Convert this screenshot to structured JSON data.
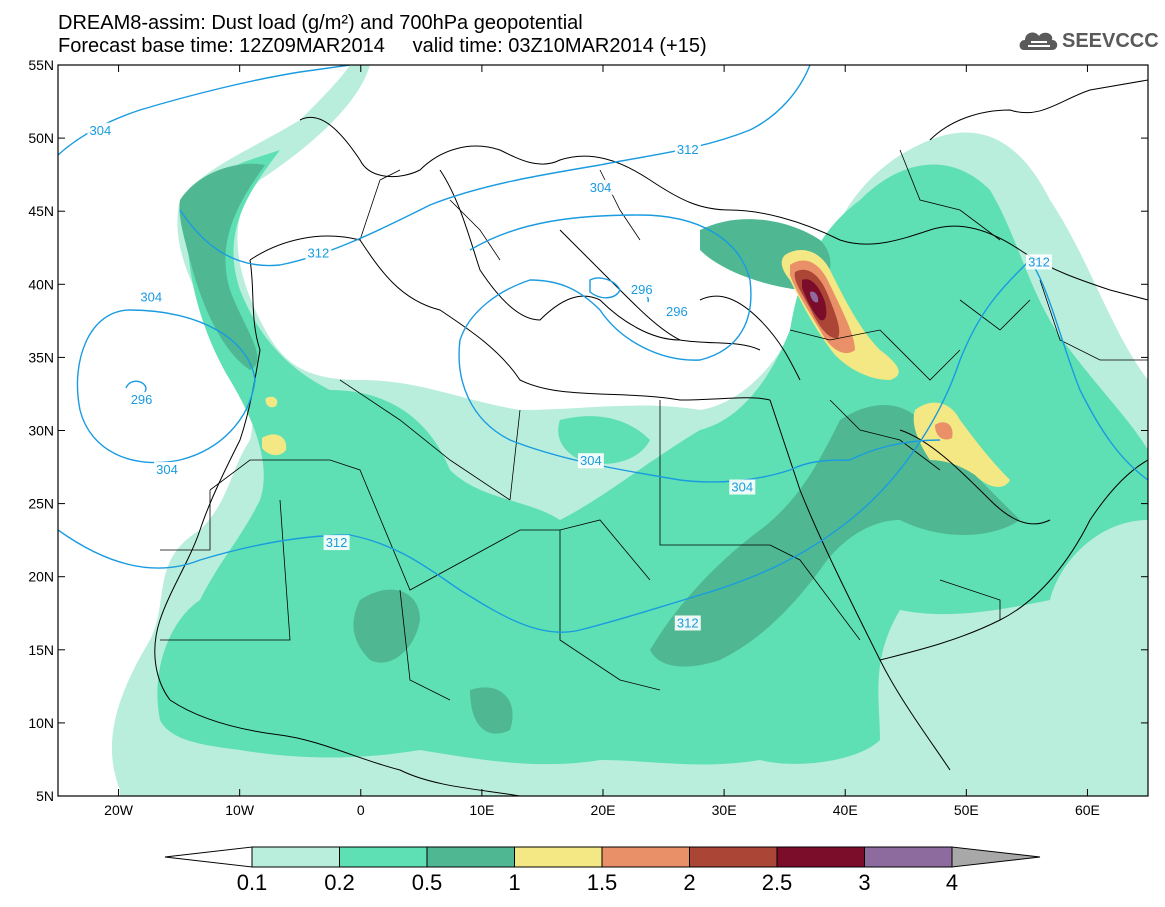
{
  "title_line1": "DREAM8-assim: Dust load (g/m²) and 700hPa geopotential",
  "title_line2": "Forecast base time: 12Z09MAR2014     valid time: 03Z10MAR2014 (+15)",
  "logo_text": "SEEVCCC",
  "logo_icon": "cloud-icon",
  "map": {
    "lat_labels": [
      "55N",
      "50N",
      "45N",
      "40N",
      "35N",
      "30N",
      "25N",
      "20N",
      "15N",
      "10N",
      "5N"
    ],
    "lat_values": [
      55,
      50,
      45,
      40,
      35,
      30,
      25,
      20,
      15,
      10,
      5
    ],
    "lon_labels": [
      "20W",
      "10W",
      "0",
      "10E",
      "20E",
      "30E",
      "40E",
      "50E",
      "60E"
    ],
    "lon_values": [
      -20,
      -10,
      0,
      10,
      20,
      30,
      40,
      50,
      60
    ],
    "lon_range": [
      -25,
      65
    ],
    "lat_range": [
      5,
      55
    ],
    "contour_color": "#1a9be0",
    "contour_labels": [
      {
        "text": "304",
        "lon": -21.5,
        "lat": 50.5
      },
      {
        "text": "304",
        "lon": -17.3,
        "lat": 39.1
      },
      {
        "text": "296",
        "lon": -18.1,
        "lat": 32.1
      },
      {
        "text": "304",
        "lon": -16.0,
        "lat": 27.3
      },
      {
        "text": "312",
        "lon": -3.5,
        "lat": 42.1
      },
      {
        "text": "312",
        "lon": -2.0,
        "lat": 22.3
      },
      {
        "text": "312",
        "lon": 27.0,
        "lat": 49.2
      },
      {
        "text": "304",
        "lon": 19.8,
        "lat": 46.6
      },
      {
        "text": "296",
        "lon": 23.2,
        "lat": 39.6
      },
      {
        "text": "296",
        "lon": 26.1,
        "lat": 38.1
      },
      {
        "text": "304",
        "lon": 19.0,
        "lat": 27.9
      },
      {
        "text": "304",
        "lon": 31.5,
        "lat": 26.1
      },
      {
        "text": "312",
        "lon": 27.0,
        "lat": 16.8
      },
      {
        "text": "312",
        "lon": 56.0,
        "lat": 41.5
      }
    ]
  },
  "colorbar": {
    "labels": [
      "0.1",
      "0.2",
      "0.5",
      "1",
      "1.5",
      "2",
      "2.5",
      "3",
      "4"
    ],
    "colors": [
      "#b9eedd",
      "#5ee0b4",
      "#4fb893",
      "#f3e884",
      "#e99068",
      "#ab4536",
      "#7c0d2a",
      "#8e6b9f"
    ],
    "low_color": "#ffffff",
    "high_color": "#a8a8a8"
  }
}
